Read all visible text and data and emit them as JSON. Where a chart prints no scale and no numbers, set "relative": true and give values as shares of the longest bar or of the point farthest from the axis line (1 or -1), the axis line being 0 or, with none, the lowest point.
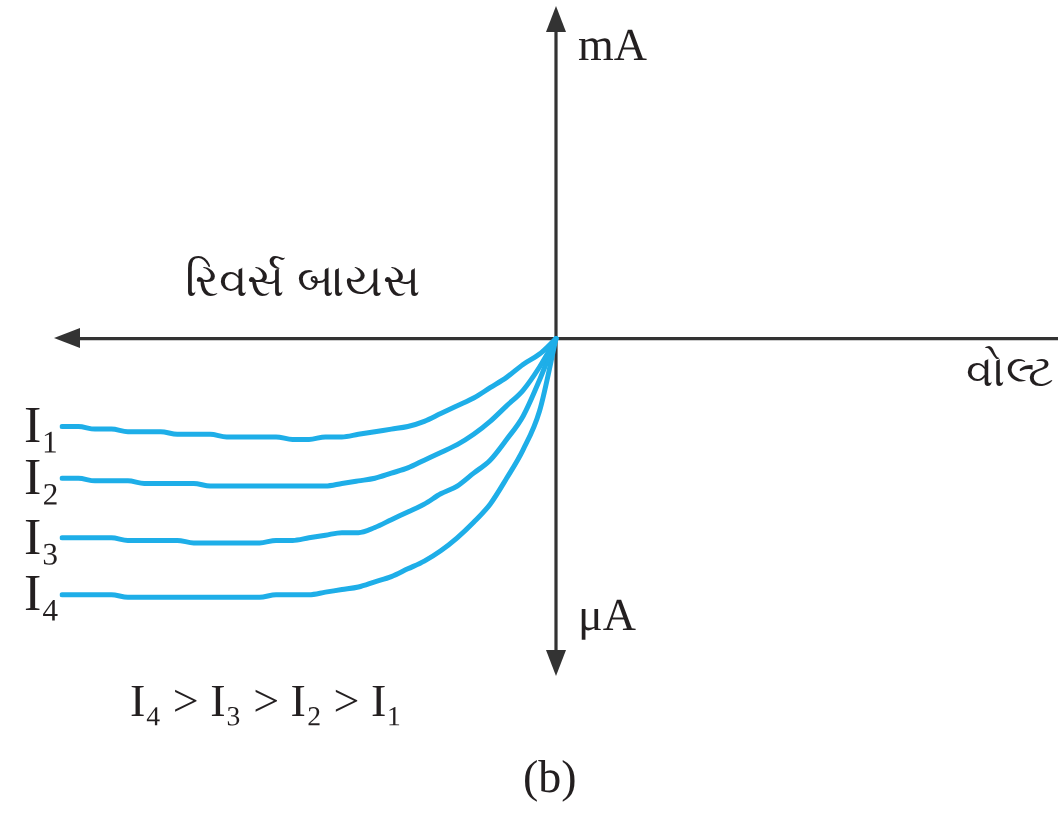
{
  "chart_data": {
    "type": "line",
    "relative": true,
    "xlabel": "વોલ્ટ",
    "annotations": [
      "mA",
      "રિવર્સ બાયસ",
      "μA",
      "I₄ > I₃ > I₂ > I₁",
      "(b)"
    ],
    "categories": [
      null,
      null,
      null,
      null,
      null,
      null,
      null,
      null,
      null,
      null,
      null,
      null,
      null,
      null,
      null,
      null,
      null,
      null,
      null,
      null,
      null,
      null,
      null,
      null,
      null,
      null,
      null,
      null,
      null,
      null,
      null,
      null,
      null,
      null,
      null,
      null,
      null,
      null,
      null,
      null,
      null,
      null,
      null,
      null,
      null,
      null,
      null,
      null,
      null,
      null,
      null,
      null,
      null,
      null,
      null,
      null,
      null,
      null,
      null,
      null,
      null
    ],
    "series": [
      {
        "name": "I₁",
        "color": "#1eaee8",
        "values": [
          -0.34,
          -0.34,
          -0.35,
          -0.35,
          -0.36,
          -0.36,
          -0.36,
          -0.37,
          -0.37,
          -0.37,
          -0.38,
          -0.38,
          -0.38,
          -0.38,
          -0.39,
          -0.39,
          -0.38,
          -0.38,
          -0.37,
          -0.36,
          -0.35,
          -0.34,
          -0.32,
          -0.29,
          -0.26,
          -0.23,
          -0.19,
          -0.15,
          -0.1,
          -0.06,
          0,
          null,
          null,
          null,
          null,
          null,
          null,
          null,
          null,
          null,
          null,
          null,
          null,
          null,
          null,
          null,
          null,
          null,
          null,
          null,
          null,
          null,
          null,
          null,
          null,
          null,
          null,
          null,
          null,
          null,
          null
        ]
      },
      {
        "name": "I₂",
        "color": "#1eaee8",
        "values": [
          -0.54,
          -0.54,
          -0.55,
          -0.55,
          -0.55,
          -0.56,
          -0.56,
          -0.56,
          -0.56,
          -0.57,
          -0.57,
          -0.57,
          -0.57,
          -0.57,
          -0.57,
          -0.57,
          -0.57,
          -0.56,
          -0.55,
          -0.54,
          -0.52,
          -0.5,
          -0.47,
          -0.44,
          -0.41,
          -0.37,
          -0.32,
          -0.26,
          -0.2,
          -0.11,
          0,
          null,
          null,
          null,
          null,
          null,
          null,
          null,
          null,
          null,
          null,
          null,
          null,
          null,
          null,
          null,
          null,
          null,
          null,
          null,
          null,
          null,
          null,
          null,
          null,
          null,
          null,
          null,
          null,
          null,
          null
        ]
      },
      {
        "name": "I₃",
        "color": "#1eaee8",
        "values": [
          -0.77,
          -0.77,
          -0.77,
          -0.77,
          -0.78,
          -0.78,
          -0.78,
          -0.78,
          -0.79,
          -0.79,
          -0.79,
          -0.79,
          -0.79,
          -0.78,
          -0.78,
          -0.77,
          -0.76,
          -0.75,
          -0.75,
          -0.73,
          -0.7,
          -0.67,
          -0.64,
          -0.6,
          -0.57,
          -0.52,
          -0.47,
          -0.39,
          -0.3,
          -0.16,
          0,
          null,
          null,
          null,
          null,
          null,
          null,
          null,
          null,
          null,
          null,
          null,
          null,
          null,
          null,
          null,
          null,
          null,
          null,
          null,
          null,
          null,
          null,
          null,
          null,
          null,
          null,
          null,
          null,
          null,
          null
        ]
      },
      {
        "name": "I₄",
        "color": "#1eaee8",
        "values": [
          -0.99,
          -0.99,
          -0.99,
          -0.99,
          -1,
          -1,
          -1,
          -1,
          -1,
          -1,
          -1,
          -1,
          -1,
          -0.99,
          -0.99,
          -0.99,
          -0.98,
          -0.97,
          -0.96,
          -0.94,
          -0.92,
          -0.89,
          -0.86,
          -0.82,
          -0.77,
          -0.71,
          -0.64,
          -0.54,
          -0.43,
          -0.28,
          0,
          null,
          null,
          null,
          null,
          null,
          null,
          null,
          null,
          null,
          null,
          null,
          null,
          null,
          null,
          null,
          null,
          null,
          null,
          null,
          null,
          null,
          null,
          null,
          null,
          null,
          null,
          null,
          null,
          null,
          null
        ]
      }
    ]
  }
}
